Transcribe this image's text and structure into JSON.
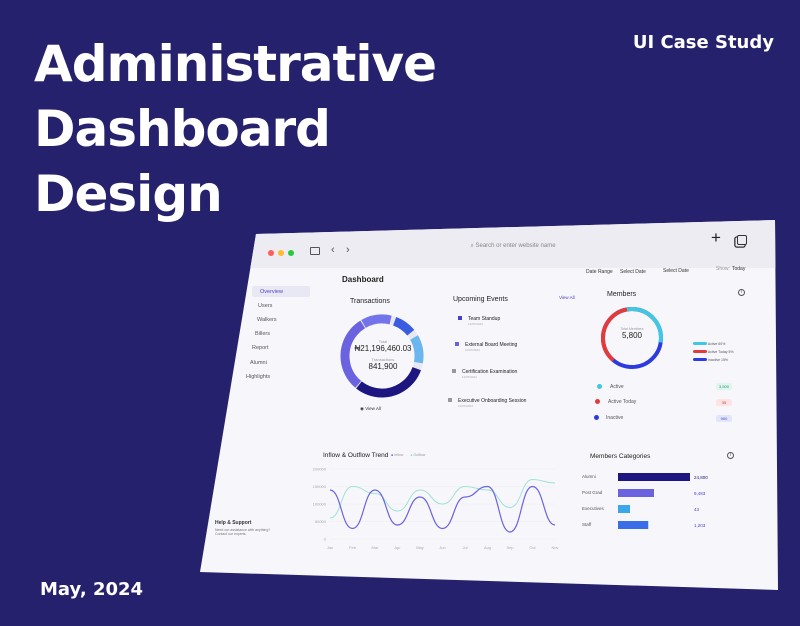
{
  "hero": {
    "title_lines": [
      "Administrative",
      "Dashboard",
      "Design"
    ],
    "case_study": "UI Case Study",
    "date": "May, 2024"
  },
  "browser": {
    "url_placeholder": "Search or enter website name",
    "plus": "+",
    "controls_colors": [
      "#ff5f57",
      "#febc2e",
      "#28c840"
    ]
  },
  "sidebar": {
    "items": [
      "Overview",
      "Users",
      "Walkers",
      "Billers",
      "Report",
      "Alumni",
      "Highlights"
    ],
    "help_title": "Help & Support",
    "help_text": "Need our assistance with anything? Contact our experts."
  },
  "header": {
    "title": "Dashboard",
    "date_range_label": "Date Range",
    "select_date_1": "Select Date",
    "select_date_2": "Select Date",
    "show_label": "Show:",
    "show_value": "Today"
  },
  "transactions": {
    "title": "Transactions",
    "total_label": "Total",
    "total_value": "₦21,196,460.03",
    "count_label": "Transactions",
    "count_value": "841,900",
    "view_all": "View All"
  },
  "events": {
    "title": "Upcoming Events",
    "view_all": "View All",
    "items": [
      {
        "name": "Team Standup",
        "date": "11/07/2024"
      },
      {
        "name": "External Board Meeting",
        "date": "11/07/2024"
      },
      {
        "name": "Certification Examination",
        "date": "11/07/2024"
      },
      {
        "name": "Executive Onboarding Session",
        "date": "11/07/2024"
      }
    ]
  },
  "members": {
    "title": "Members",
    "total_label": "Total Members",
    "total_value": "5,800",
    "legend": [
      {
        "name": "Active",
        "pct": "60%",
        "color": "#3fc8e6"
      },
      {
        "name": "Active Today",
        "pct": "5%",
        "color": "#e23b3b"
      },
      {
        "name": "Inactive",
        "pct": "15%",
        "color": "#2c3be0"
      }
    ],
    "rows": [
      {
        "name": "Active",
        "badge": "3,500",
        "color": "#3fc8e6",
        "badge_bg": "#dff6ef",
        "badge_fg": "#2a9a6a"
      },
      {
        "name": "Active Today",
        "badge": "35",
        "color": "#e23b3b",
        "badge_bg": "#fde3e3",
        "badge_fg": "#d03a3a"
      },
      {
        "name": "Inactive",
        "badge": "900",
        "color": "#2c3be0",
        "badge_bg": "#e3e5fb",
        "badge_fg": "#3a48d0"
      }
    ]
  },
  "trend": {
    "title": "Inflow & Outflow Trend",
    "legend": [
      {
        "name": "Inflow",
        "color": "#2c22a3"
      },
      {
        "name": "Outflow",
        "color": "#6ad9c3"
      }
    ]
  },
  "categories": {
    "title": "Members Categories"
  },
  "chart_data": [
    {
      "type": "line",
      "title": "Inflow & Outflow Trend",
      "categories": [
        "Jan",
        "Feb",
        "Mar",
        "Apr",
        "May",
        "Jun",
        "Jul",
        "Aug",
        "Sep",
        "Oct",
        "Nov"
      ],
      "yticks": [
        "200000",
        "150000",
        "100000",
        "50000",
        "0"
      ],
      "ylim": [
        0,
        200000
      ],
      "series": [
        {
          "name": "Inflow",
          "color": "#6b62e0",
          "values": [
            140000,
            30000,
            140000,
            40000,
            120000,
            30000,
            120000,
            150000,
            20000,
            150000,
            40000
          ]
        },
        {
          "name": "Outflow",
          "color": "#9be3d4",
          "values": [
            60000,
            150000,
            130000,
            80000,
            140000,
            100000,
            150000,
            140000,
            90000,
            170000,
            160000
          ]
        }
      ]
    },
    {
      "type": "bar",
      "title": "Members Categories",
      "categories": [
        "Alumni",
        "Post Grad",
        "Executives",
        "Staff"
      ],
      "values": [
        24800,
        9483,
        43,
        1203
      ],
      "labels": [
        "24,800",
        "9,483",
        "43",
        "1,203"
      ],
      "colors": [
        "#1d1680",
        "#6b62e0",
        "#3aa8e8",
        "#3a6ee8"
      ]
    }
  ]
}
